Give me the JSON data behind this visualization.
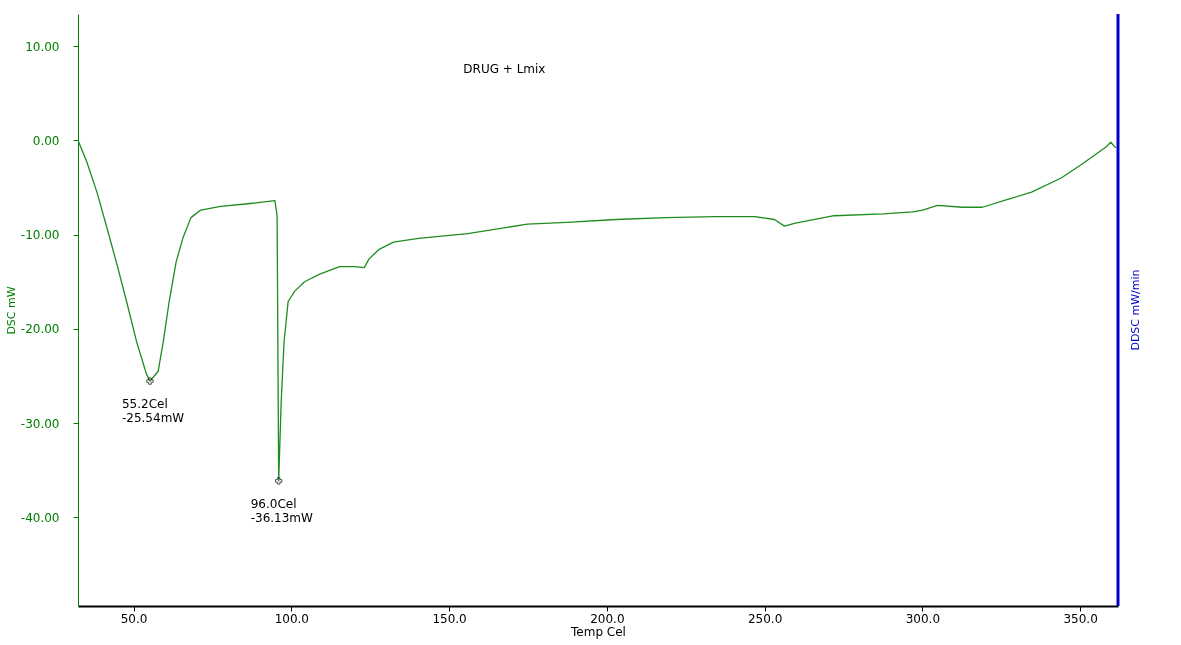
{
  "chart_data": {
    "type": "line",
    "title": "DRUG + Lmix",
    "xlabel": "Temp Cel",
    "ylabel": "DSC mW",
    "y2label": "DDSC mW/min",
    "x": [
      32.4,
      35.2,
      38.4,
      41.5,
      44.7,
      47.8,
      51.0,
      54.1,
      55.2,
      57.8,
      59.4,
      61.3,
      63.5,
      65.7,
      68.2,
      71.3,
      77.6,
      87.0,
      94.8,
      95.5,
      96.0,
      96.8,
      97.7,
      99.0,
      101.1,
      104.2,
      109.0,
      115.3,
      120.0,
      123.1,
      124.6,
      127.7,
      132.4,
      140.3,
      155.9,
      174.8,
      187.3,
      202.9,
      218.7,
      234.3,
      246.9,
      253.1,
      256.3,
      259.4,
      272.0,
      287.6,
      297.0,
      300.1,
      304.8,
      312.7,
      319.0,
      326.8,
      334.6,
      344.0,
      350.3,
      358.2,
      359.7,
      361.3
    ],
    "series": [
      {
        "color": "#1e8c1e",
        "values": [
          0.0,
          -2.3,
          -5.5,
          -9.2,
          -13.1,
          -17.1,
          -21.4,
          -24.8,
          -25.54,
          -24.5,
          -21.4,
          -17.1,
          -12.9,
          -10.3,
          -8.2,
          -7.4,
          -7.0,
          -6.7,
          -6.4,
          -8.0,
          -36.13,
          -27.7,
          -21.4,
          -17.1,
          -16.0,
          -15.0,
          -14.2,
          -13.4,
          -13.4,
          -13.5,
          -12.6,
          -11.6,
          -10.8,
          -10.4,
          -9.9,
          -8.9,
          -8.7,
          -8.4,
          -8.2,
          -8.1,
          -8.1,
          -8.4,
          -9.1,
          -8.8,
          -8.0,
          -7.8,
          -7.6,
          -7.4,
          -6.9,
          -7.1,
          -7.1,
          -6.3,
          -5.5,
          -4.0,
          -2.6,
          -0.7,
          -0.2,
          -0.8
        ]
      }
    ],
    "xlim": [
      32.4,
      362
    ],
    "xticks": [
      {
        "value": 50,
        "label": "50.0"
      },
      {
        "value": 100,
        "label": "100.0"
      },
      {
        "value": 150,
        "label": "150.0"
      },
      {
        "value": 200,
        "label": "200.0"
      },
      {
        "value": 250,
        "label": "250.0"
      },
      {
        "value": 300,
        "label": "300.0"
      },
      {
        "value": 350,
        "label": "350.0"
      }
    ],
    "ylim": [
      -49.4,
      13.4
    ],
    "yticks": [
      {
        "value": 10,
        "label": "10.00"
      },
      {
        "value": 0,
        "label": "0.00"
      },
      {
        "value": -10,
        "label": "-10.00"
      },
      {
        "value": -20,
        "label": "-20.00"
      },
      {
        "value": -30,
        "label": "-30.00"
      },
      {
        "value": -40,
        "label": "-40.00"
      }
    ],
    "annotations": [
      {
        "text": "55.2Cel\n-25.54mW",
        "x": 55.2,
        "y": -25.54
      },
      {
        "text": "96.0Cel\n-36.13mW",
        "x": 96.0,
        "y": -36.13
      }
    ],
    "grid": false,
    "marker": "none",
    "line_style": "solid"
  }
}
